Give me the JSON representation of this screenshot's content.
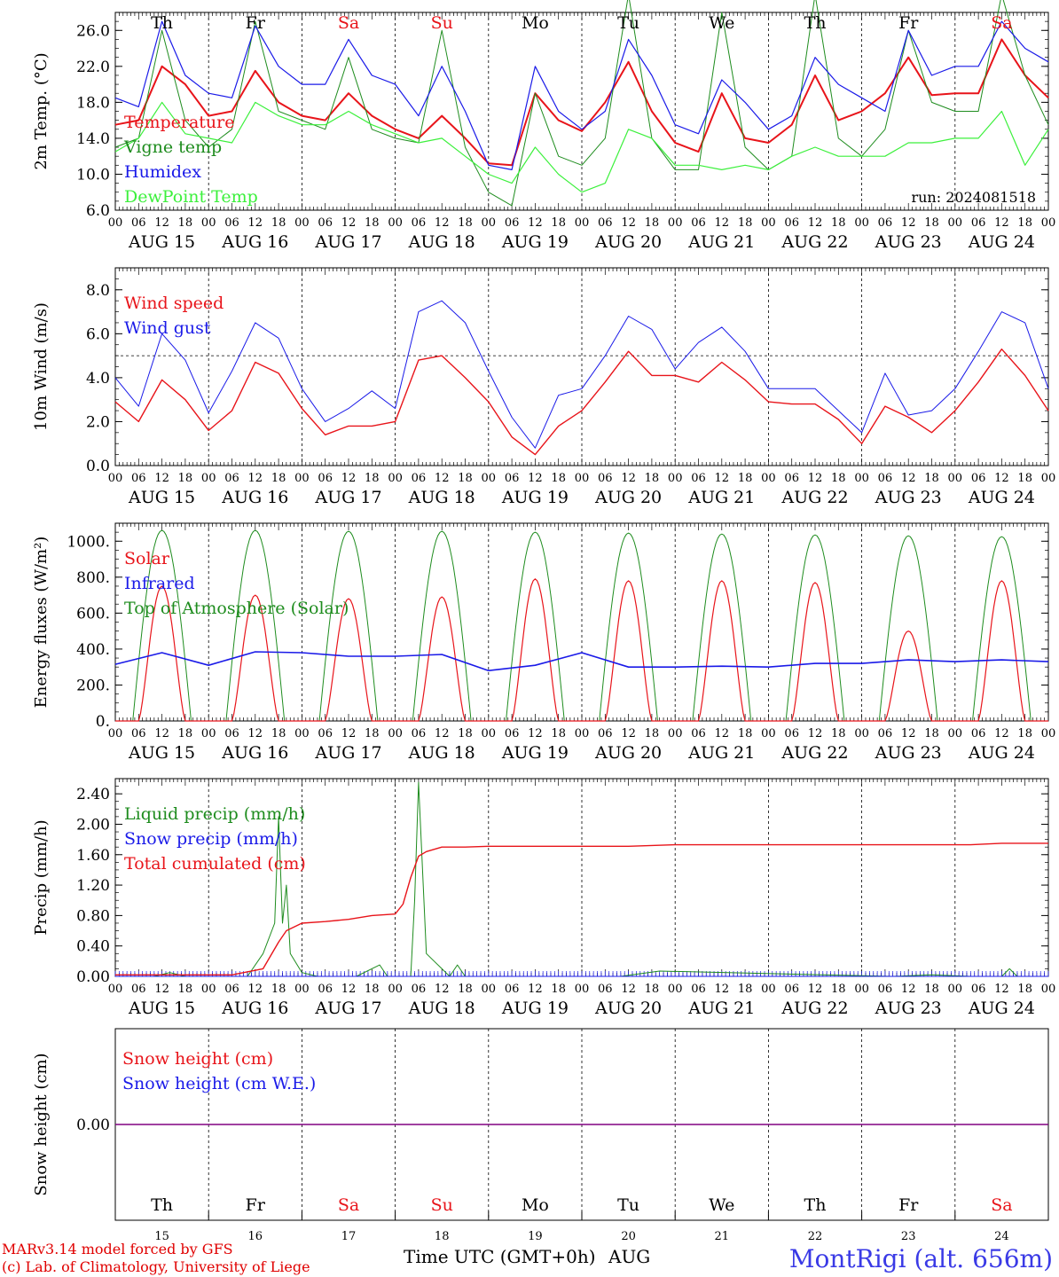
{
  "footer": {
    "credit_line1": "MARv3.14 model forced by GFS",
    "credit_line2": "(c) Lab. of Climatology, University of Liege",
    "time_axis_label": "Time UTC (GMT+0h)",
    "month_label": "AUG",
    "station": "MontRigi (alt. 656m)"
  },
  "colors": {
    "red": "#e8141a",
    "blue": "#1a1ae8",
    "green": "#1e8c1e",
    "lightgreen": "#3cf03c",
    "purple": "#800080"
  },
  "chart_data": [
    {
      "type": "line",
      "panel": "temperature",
      "ylabel": "2m Temp. (°C)",
      "ylim": [
        6,
        28
      ],
      "yticks": [
        "6.0",
        "10.0",
        "14.0",
        "18.0",
        "22.0",
        "26.0"
      ],
      "hour_ticks": [
        "00",
        "06",
        "12",
        "18"
      ],
      "days": [
        "AUG 15",
        "AUG 16",
        "AUG 17",
        "AUG 18",
        "AUG 19",
        "AUG 20",
        "AUG 21",
        "AUG 22",
        "AUG 23",
        "AUG 24"
      ],
      "weekdays": [
        {
          "label": "Th",
          "color": "black"
        },
        {
          "label": "Fr",
          "color": "black"
        },
        {
          "label": "Sa",
          "color": "red"
        },
        {
          "label": "Su",
          "color": "red"
        },
        {
          "label": "Mo",
          "color": "black"
        },
        {
          "label": "Tu",
          "color": "black"
        },
        {
          "label": "We",
          "color": "black"
        },
        {
          "label": "Th",
          "color": "black"
        },
        {
          "label": "Fr",
          "color": "black"
        },
        {
          "label": "Sa",
          "color": "red"
        }
      ],
      "annotation": "run: 2024081518",
      "x_hours": [
        0,
        6,
        12,
        18,
        24,
        30,
        36,
        42,
        48,
        54,
        60,
        66,
        72,
        78,
        84,
        90,
        96,
        102,
        108,
        114,
        120,
        126,
        132,
        138,
        144,
        150,
        156,
        162,
        168,
        174,
        180,
        186,
        192,
        198,
        204,
        210,
        216,
        222,
        228,
        234,
        240
      ],
      "series": [
        {
          "name": "Temperature",
          "color": "red",
          "values": [
            15.5,
            16,
            22,
            20,
            16.5,
            17,
            21.5,
            18,
            16.5,
            16,
            19,
            16.5,
            15,
            14,
            16.5,
            14,
            11.2,
            11,
            19,
            16,
            14.8,
            18,
            22.5,
            17,
            13.5,
            12.5,
            19,
            14,
            13.5,
            15.5,
            21,
            16,
            17,
            19,
            23,
            18.8,
            19,
            19,
            25,
            21,
            18.5
          ]
        },
        {
          "name": "Vigne temp",
          "color": "green",
          "values": [
            13,
            14,
            26,
            16,
            13,
            15,
            27,
            17,
            16,
            15,
            23,
            15,
            14,
            13.5,
            26,
            13,
            8,
            6.5,
            19,
            12,
            11,
            14,
            30,
            14,
            10.5,
            10.5,
            28,
            13,
            10.5,
            12,
            30,
            14,
            12,
            15,
            26,
            18,
            17,
            17,
            30,
            21,
            15.5
          ]
        },
        {
          "name": "Humidex",
          "color": "blue",
          "values": [
            18.5,
            17.5,
            27,
            21,
            19,
            18.5,
            26.5,
            22,
            20,
            20,
            25,
            21,
            20,
            16.5,
            22,
            17,
            11,
            10.5,
            22,
            17,
            15,
            17,
            25,
            21,
            15.5,
            14.5,
            20.5,
            18,
            15,
            16.5,
            23,
            20,
            18.5,
            17,
            26,
            21,
            22,
            22,
            27,
            24,
            22.5
          ]
        },
        {
          "name": "DewPoint Temp",
          "color": "lightgreen",
          "values": [
            12.5,
            14,
            18,
            14.5,
            14,
            13.5,
            18,
            16.5,
            15.5,
            15.5,
            17,
            15.5,
            14.5,
            13.5,
            14,
            12,
            10,
            9,
            13,
            10,
            8,
            9,
            15,
            14,
            11,
            11,
            10.5,
            11,
            10.5,
            12,
            13,
            12,
            12,
            12,
            13.5,
            13.5,
            14,
            14,
            17,
            11,
            15
          ]
        }
      ]
    },
    {
      "type": "line",
      "panel": "wind",
      "ylabel": "10m Wind (m/s)",
      "ylim": [
        0,
        9
      ],
      "yticks": [
        "0.0",
        "2.0",
        "4.0",
        "6.0",
        "8.0"
      ],
      "hour_ticks": [
        "00",
        "06",
        "12",
        "18"
      ],
      "days": [
        "AUG 15",
        "AUG 16",
        "AUG 17",
        "AUG 18",
        "AUG 19",
        "AUG 20",
        "AUG 21",
        "AUG 22",
        "AUG 23",
        "AUG 24"
      ],
      "reference_line": 5,
      "x_hours": [
        0,
        6,
        12,
        18,
        24,
        30,
        36,
        42,
        48,
        54,
        60,
        66,
        72,
        78,
        84,
        90,
        96,
        102,
        108,
        114,
        120,
        126,
        132,
        138,
        144,
        150,
        156,
        162,
        168,
        174,
        180,
        186,
        192,
        198,
        204,
        210,
        216,
        222,
        228,
        234,
        240
      ],
      "series": [
        {
          "name": "Wind speed",
          "color": "red",
          "values": [
            2.9,
            2,
            3.9,
            3,
            1.6,
            2.5,
            4.7,
            4.2,
            2.6,
            1.4,
            1.8,
            1.8,
            2,
            4.8,
            5,
            4,
            2.9,
            1.3,
            0.5,
            1.8,
            2.5,
            3.8,
            5.2,
            4.1,
            4.1,
            3.8,
            4.7,
            3.9,
            2.9,
            2.8,
            2.8,
            2.1,
            1,
            2.7,
            2.2,
            1.5,
            2.5,
            3.8,
            5.3,
            4.1,
            2.5
          ]
        },
        {
          "name": "Wind gust",
          "color": "blue",
          "values": [
            4,
            2.7,
            6,
            4.8,
            2.4,
            4.3,
            6.5,
            5.8,
            3.5,
            2,
            2.6,
            3.4,
            2.6,
            7,
            7.5,
            6.5,
            4.3,
            2.2,
            0.8,
            3.2,
            3.5,
            5,
            6.8,
            6.2,
            4.4,
            5.6,
            6.3,
            5.2,
            3.5,
            3.5,
            3.5,
            2.5,
            1.5,
            4.2,
            2.3,
            2.5,
            3.5,
            5.2,
            7,
            6.5,
            3.5
          ]
        }
      ]
    },
    {
      "type": "line",
      "panel": "energy",
      "ylabel": "Energy fluxes (W/m²)",
      "ylim": [
        0,
        1100
      ],
      "yticks": [
        "0.",
        "200.",
        "400.",
        "600.",
        "800.",
        "1000."
      ],
      "hour_ticks": [
        "00",
        "06",
        "12",
        "18"
      ],
      "days": [
        "AUG 15",
        "AUG 16",
        "AUG 17",
        "AUG 18",
        "AUG 19",
        "AUG 20",
        "AUG 21",
        "AUG 22",
        "AUG 23",
        "AUG 24"
      ],
      "solar_peaks": [
        750,
        700,
        680,
        690,
        790,
        780,
        780,
        770,
        500,
        780
      ],
      "toa_peaks": [
        1060,
        1060,
        1055,
        1055,
        1050,
        1045,
        1040,
        1035,
        1030,
        1025
      ],
      "series": [
        {
          "name": "Solar",
          "color": "red"
        },
        {
          "name": "Infrared",
          "color": "blue",
          "x_hours": [
            0,
            12,
            24,
            36,
            48,
            60,
            72,
            84,
            96,
            108,
            120,
            132,
            144,
            156,
            168,
            180,
            192,
            204,
            216,
            228,
            240
          ],
          "values": [
            315,
            380,
            310,
            385,
            380,
            360,
            360,
            370,
            280,
            310,
            380,
            300,
            300,
            305,
            300,
            320,
            320,
            340,
            330,
            340,
            330
          ]
        },
        {
          "name": "Top of Atmosphere (Solar)",
          "color": "green"
        }
      ]
    },
    {
      "type": "line",
      "panel": "precipitation",
      "ylabel": "Precip (mm/h)",
      "ylim": [
        0,
        2.6
      ],
      "yticks": [
        "0.00",
        "0.40",
        "0.80",
        "1.20",
        "1.60",
        "2.00",
        "2.40"
      ],
      "hour_ticks": [
        "00",
        "06",
        "12",
        "18"
      ],
      "days": [
        "AUG 15",
        "AUG 16",
        "AUG 17",
        "AUG 18",
        "AUG 19",
        "AUG 20",
        "AUG 21",
        "AUG 22",
        "AUG 23",
        "AUG 24"
      ],
      "series": [
        {
          "name": "Liquid precip (mm/h)",
          "color": "green",
          "x_hours": [
            0,
            10,
            14,
            18,
            34,
            38,
            41,
            42,
            43,
            44,
            45,
            48,
            52,
            56,
            62,
            68,
            70,
            72,
            74,
            76,
            77,
            78,
            80,
            82,
            84,
            86,
            88,
            90,
            92,
            94,
            96,
            130,
            140,
            200,
            210,
            220,
            228,
            230,
            232,
            240
          ],
          "values": [
            0,
            0,
            0.05,
            0,
            0,
            0.3,
            0.7,
            2.1,
            0.7,
            1.2,
            0.3,
            0.05,
            0,
            0,
            0,
            0.15,
            0,
            0,
            0,
            0,
            1,
            2.55,
            0.3,
            0.2,
            0.1,
            0,
            0.15,
            0,
            0,
            0,
            0,
            0,
            0.07,
            0,
            0.02,
            0,
            0,
            0.1,
            0,
            0
          ]
        },
        {
          "name": "Snow precip (mm/h)",
          "color": "blue",
          "x_hours": [
            0,
            240
          ],
          "values": [
            0,
            0
          ]
        },
        {
          "name": "Total cumulated (cm)",
          "color": "red",
          "x_hours": [
            0,
            30,
            38,
            42,
            44,
            48,
            54,
            60,
            66,
            72,
            74,
            76,
            78,
            80,
            84,
            90,
            96,
            120,
            132,
            144,
            192,
            220,
            228,
            240
          ],
          "values": [
            0.02,
            0.02,
            0.1,
            0.45,
            0.6,
            0.7,
            0.72,
            0.75,
            0.8,
            0.82,
            0.95,
            1.3,
            1.58,
            1.64,
            1.7,
            1.7,
            1.71,
            1.71,
            1.71,
            1.73,
            1.73,
            1.73,
            1.75,
            1.75
          ]
        }
      ]
    },
    {
      "type": "line",
      "panel": "snow",
      "ylabel": "Snow height (cm)",
      "ylim": [
        -1,
        1
      ],
      "yticks": [
        "0.00"
      ],
      "weekdays": [
        {
          "label": "Th",
          "color": "black"
        },
        {
          "label": "Fr",
          "color": "black"
        },
        {
          "label": "Sa",
          "color": "red"
        },
        {
          "label": "Su",
          "color": "red"
        },
        {
          "label": "Mo",
          "color": "black"
        },
        {
          "label": "Tu",
          "color": "black"
        },
        {
          "label": "We",
          "color": "black"
        },
        {
          "label": "Th",
          "color": "black"
        },
        {
          "label": "Fr",
          "color": "black"
        },
        {
          "label": "Sa",
          "color": "red"
        }
      ],
      "day_numbers": [
        "15",
        "16",
        "17",
        "18",
        "19",
        "20",
        "21",
        "22",
        "23",
        "24"
      ],
      "series": [
        {
          "name": "Snow height (cm)",
          "color": "red",
          "x_hours": [
            0,
            240
          ],
          "values": [
            0,
            0
          ]
        },
        {
          "name": "Snow height (cm W.E.)",
          "color": "blue",
          "x_hours": [
            0,
            240
          ],
          "values": [
            0,
            0
          ]
        }
      ]
    }
  ]
}
